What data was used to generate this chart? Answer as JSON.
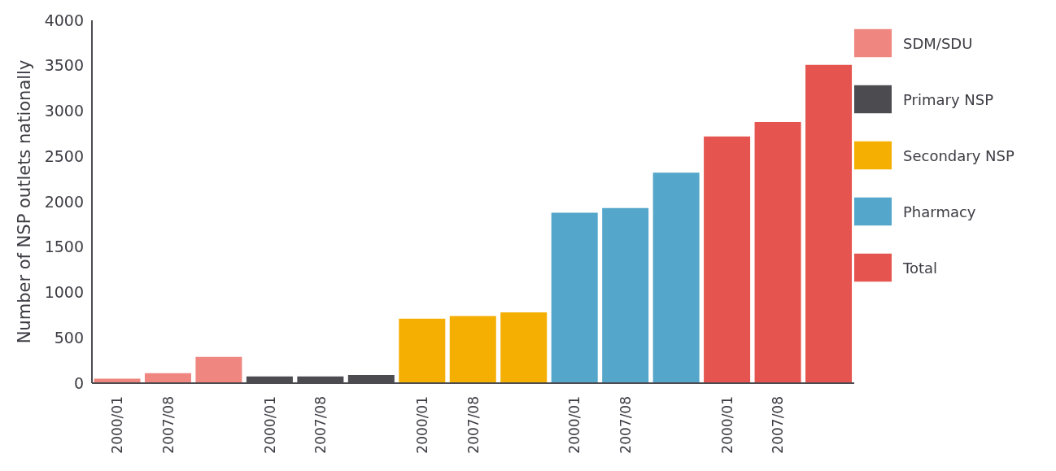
{
  "chart_data": {
    "type": "bar",
    "ylabel": "Number of NSP outlets nationally",
    "categories": [
      "2000/01",
      "2007/08",
      null,
      "2000/01",
      "2007/08",
      null,
      "2000/01",
      "2007/08",
      null,
      "2000/01",
      "2007/08",
      null,
      "2000/01",
      "2007/08",
      null
    ],
    "series": [
      {
        "name": "SDM/SDU",
        "color": "#ef8680",
        "values": [
          50,
          110,
          290,
          null,
          null,
          null,
          null,
          null,
          null,
          null,
          null,
          null,
          null,
          null,
          null
        ]
      },
      {
        "name": "Primary NSP",
        "color": "#4b4b50",
        "values": [
          null,
          null,
          null,
          75,
          75,
          90,
          null,
          null,
          null,
          null,
          null,
          null,
          null,
          null,
          null
        ]
      },
      {
        "name": "Secondary NSP",
        "color": "#f5ae02",
        "values": [
          null,
          null,
          null,
          null,
          null,
          null,
          710,
          740,
          780,
          null,
          null,
          null,
          null,
          null,
          null
        ]
      },
      {
        "name": "Pharmacy",
        "color": "#54a6ca",
        "values": [
          null,
          null,
          null,
          null,
          null,
          null,
          null,
          null,
          null,
          1880,
          1930,
          2320,
          null,
          null,
          null
        ]
      },
      {
        "name": "Total",
        "color": "#e5544e",
        "values": [
          null,
          null,
          null,
          null,
          null,
          null,
          null,
          null,
          null,
          null,
          null,
          null,
          2720,
          2880,
          3510
        ]
      }
    ],
    "ylim": [
      0,
      4000
    ],
    "yticks": [
      0,
      500,
      1000,
      1500,
      2000,
      2500,
      3000,
      3500,
      4000
    ],
    "legend": "right"
  }
}
